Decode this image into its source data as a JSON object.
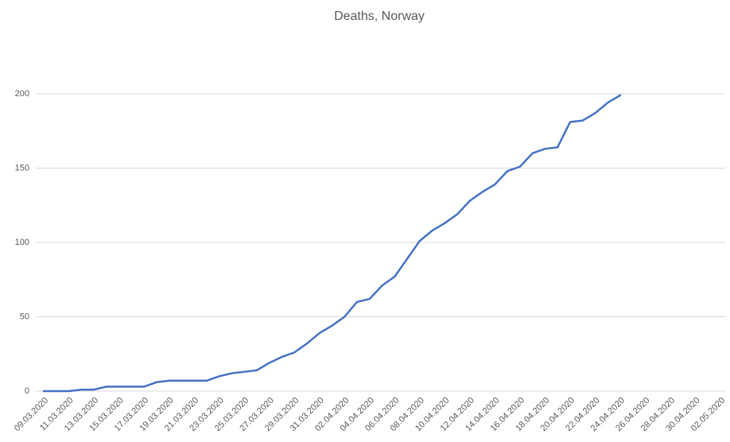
{
  "chart_data": {
    "type": "line",
    "title": "Deaths, Norway",
    "categories": [
      "09.03.2020",
      null,
      "11.03.2020",
      null,
      "13.03.2020",
      null,
      "15.03.2020",
      null,
      "17.03.2020",
      null,
      "19.03.2020",
      null,
      "21.03.2020",
      null,
      "23.03.2020",
      null,
      "25.03.2020",
      null,
      "27.03.2020",
      null,
      "29.03.2020",
      null,
      "31.03.2020",
      null,
      "02.04.2020",
      null,
      "04.04.2020",
      null,
      "06.04.2020",
      null,
      "08.04.2020",
      null,
      "10.04.2020",
      null,
      "12.04.2020",
      null,
      "14.04.2020",
      null,
      "16.04.2020",
      null,
      "18.04.2020",
      null,
      "20.04.2020",
      null,
      "22.04.2020",
      null,
      "24.04.2020",
      null,
      "26.04.2020",
      null,
      "28.04.2020",
      null,
      "30.04.2020",
      null,
      "02.05.2020"
    ],
    "series": [
      {
        "name": "Deaths",
        "color": "#4472c4",
        "values": [
          0,
          0,
          0,
          1,
          1,
          3,
          3,
          3,
          3,
          6,
          7,
          7,
          7,
          7,
          10,
          12,
          13,
          14,
          19,
          23,
          26,
          32,
          39,
          44,
          50,
          60,
          62,
          71,
          77,
          89,
          101,
          108,
          113,
          119,
          128,
          134,
          139,
          148,
          151,
          160,
          163,
          164,
          181,
          182,
          187,
          194,
          199,
          null,
          null,
          null,
          null,
          null,
          null,
          null,
          null
        ]
      }
    ],
    "ylim": [
      0,
      200
    ],
    "yticks": [
      0,
      50,
      100,
      150,
      200
    ],
    "grid": true
  }
}
